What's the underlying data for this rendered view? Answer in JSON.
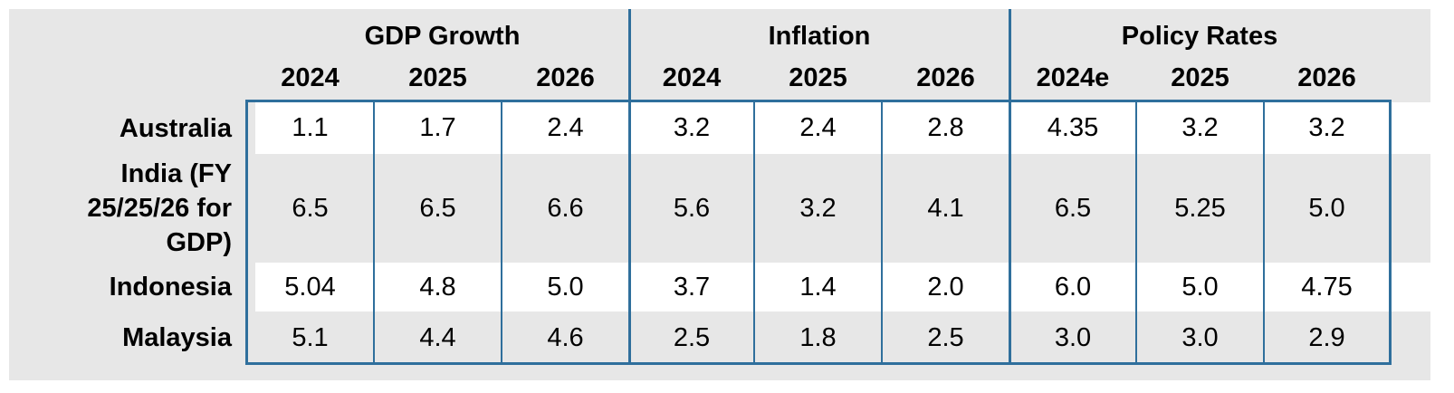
{
  "groups": [
    "GDP Growth",
    "Inflation",
    "Policy Rates"
  ],
  "years": [
    "2024",
    "2025",
    "2026",
    "2024",
    "2025",
    "2026",
    "2024e",
    "2025",
    "2026"
  ],
  "rows": [
    {
      "label": "Australia",
      "values": [
        "1.1",
        "1.7",
        "2.4",
        "3.2",
        "2.4",
        "2.8",
        "4.35",
        "3.2",
        "3.2"
      ]
    },
    {
      "label": "India (FY 25/25/26 for GDP)",
      "values": [
        "6.5",
        "6.5",
        "6.6",
        "5.6",
        "3.2",
        "4.1",
        "6.5",
        "5.25",
        "5.0"
      ]
    },
    {
      "label": "Indonesia",
      "values": [
        "5.04",
        "4.8",
        "5.0",
        "3.7",
        "1.4",
        "2.0",
        "6.0",
        "5.0",
        "4.75"
      ]
    },
    {
      "label": "Malaysia",
      "values": [
        "5.1",
        "4.4",
        "4.6",
        "2.5",
        "1.8",
        "2.5",
        "3.0",
        "3.0",
        "2.9"
      ]
    }
  ]
}
